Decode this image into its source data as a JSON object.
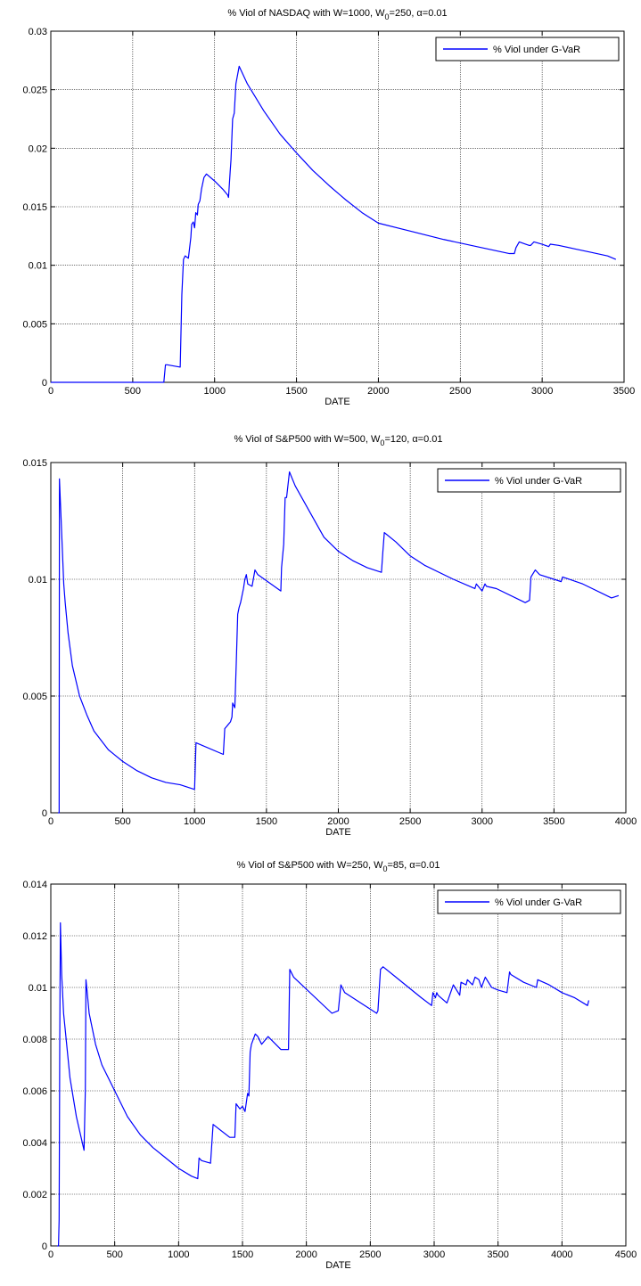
{
  "chart_data": [
    {
      "type": "line",
      "title": "% Viol of NASDAQ  with W=1000, W0=250, α=0.01",
      "title_parts": {
        "pre": "% Viol of NASDAQ  with W=1000, W",
        "sub": "0",
        "post": "=250, α=0.01"
      },
      "xlabel": "DATE",
      "ylabel": "",
      "xlim": [
        0,
        3500
      ],
      "ylim": [
        0,
        0.03
      ],
      "xticks": [
        "0",
        "500",
        "1000",
        "1500",
        "2000",
        "2500",
        "3000",
        "3500"
      ],
      "yticks": [
        "0",
        "0.005",
        "0.01",
        "0.015",
        "0.02",
        "0.025",
        "0.03"
      ],
      "grid": true,
      "legend_position": "top-right",
      "line_color": "#0000ff",
      "series": [
        {
          "name": "% Viol under G-VaR",
          "x": [
            0,
            690,
            700,
            710,
            790,
            800,
            805,
            810,
            820,
            840,
            855,
            860,
            870,
            878,
            885,
            895,
            900,
            910,
            920,
            935,
            950,
            1000,
            1050,
            1080,
            1085,
            1095,
            1100,
            1110,
            1120,
            1130,
            1150,
            1200,
            1300,
            1400,
            1500,
            1600,
            1700,
            1800,
            1900,
            2000,
            2200,
            2400,
            2600,
            2800,
            2830,
            2840,
            2860,
            2900,
            2920,
            2930,
            2950,
            3000,
            3040,
            3050,
            3100,
            3200,
            3300,
            3400,
            3450
          ],
          "y": [
            0,
            0,
            0.0015,
            0.0015,
            0.0013,
            0.0075,
            0.009,
            0.0105,
            0.0108,
            0.0106,
            0.0124,
            0.0135,
            0.0137,
            0.0132,
            0.0145,
            0.0143,
            0.0152,
            0.0155,
            0.0165,
            0.0175,
            0.0178,
            0.0172,
            0.0165,
            0.016,
            0.0158,
            0.018,
            0.019,
            0.0225,
            0.023,
            0.0255,
            0.027,
            0.0255,
            0.0232,
            0.0212,
            0.0196,
            0.0181,
            0.0168,
            0.0156,
            0.0145,
            0.0136,
            0.0129,
            0.0122,
            0.0116,
            0.011,
            0.011,
            0.0115,
            0.012,
            0.0118,
            0.0117,
            0.0117,
            0.012,
            0.0118,
            0.0116,
            0.0118,
            0.0117,
            0.0114,
            0.0111,
            0.0108,
            0.0105
          ]
        }
      ]
    },
    {
      "type": "line",
      "title": "% Viol of S&P500  with W=500, W0=120, α=0.01",
      "title_parts": {
        "pre": "% Viol of S&P500  with W=500, W",
        "sub": "0",
        "post": "=120, α=0.01"
      },
      "xlabel": "DATE",
      "ylabel": "",
      "xlim": [
        0,
        4000
      ],
      "ylim": [
        0,
        0.015
      ],
      "xticks": [
        "0",
        "500",
        "1000",
        "1500",
        "2000",
        "2500",
        "3000",
        "3500",
        "4000"
      ],
      "yticks": [
        "0",
        "0.005",
        "0.01",
        "0.015"
      ],
      "grid": true,
      "legend_position": "top-right",
      "line_color": "#0000ff",
      "series": [
        {
          "name": "% Viol under G-VaR",
          "x": [
            50,
            58,
            60,
            62,
            70,
            80,
            90,
            100,
            120,
            150,
            200,
            250,
            300,
            400,
            500,
            600,
            700,
            800,
            900,
            1000,
            1005,
            1010,
            1200,
            1210,
            1250,
            1260,
            1265,
            1280,
            1290,
            1300,
            1310,
            1320,
            1330,
            1340,
            1350,
            1360,
            1370,
            1400,
            1420,
            1440,
            1600,
            1605,
            1620,
            1630,
            1640,
            1660,
            1700,
            1800,
            1900,
            2000,
            2100,
            2200,
            2300,
            2310,
            2320,
            2400,
            2500,
            2600,
            2800,
            2950,
            2960,
            3000,
            3020,
            3030,
            3100,
            3300,
            3330,
            3340,
            3370,
            3400,
            3500,
            3550,
            3560,
            3700,
            3900,
            3950
          ],
          "y": [
            0,
            0,
            0.0143,
            0.014,
            0.0128,
            0.0113,
            0.0098,
            0.009,
            0.0077,
            0.0063,
            0.005,
            0.0042,
            0.0035,
            0.0027,
            0.0022,
            0.0018,
            0.0015,
            0.0013,
            0.0012,
            0.001,
            0.002,
            0.003,
            0.0025,
            0.0036,
            0.0039,
            0.0041,
            0.0047,
            0.0045,
            0.0064,
            0.0085,
            0.0088,
            0.009,
            0.0093,
            0.0096,
            0.01,
            0.0102,
            0.0098,
            0.0097,
            0.0104,
            0.0102,
            0.0095,
            0.0105,
            0.0115,
            0.0135,
            0.0135,
            0.0146,
            0.014,
            0.0129,
            0.0118,
            0.0112,
            0.0108,
            0.0105,
            0.0103,
            0.0112,
            0.012,
            0.0116,
            0.011,
            0.0106,
            0.01,
            0.0096,
            0.0098,
            0.0095,
            0.0098,
            0.0097,
            0.0096,
            0.009,
            0.0091,
            0.0101,
            0.0104,
            0.0102,
            0.01,
            0.0099,
            0.0101,
            0.0098,
            0.0092,
            0.0093
          ]
        }
      ]
    },
    {
      "type": "line",
      "title": "% Viol of S&P500  with W=250, W0=85, α=0.01",
      "title_parts": {
        "pre": "% Viol of S&P500  with W=250, W",
        "sub": "0",
        "post": "=85, α=0.01"
      },
      "xlabel": "DATE",
      "ylabel": "",
      "xlim": [
        0,
        4500
      ],
      "ylim": [
        0,
        0.014
      ],
      "xticks": [
        "0",
        "500",
        "1000",
        "1500",
        "2000",
        "2500",
        "3000",
        "3500",
        "4000",
        "4500"
      ],
      "yticks": [
        "0",
        "0.002",
        "0.004",
        "0.006",
        "0.008",
        "0.01",
        "0.012",
        "0.014"
      ],
      "grid": true,
      "legend_position": "top-right",
      "line_color": "#0000ff",
      "series": [
        {
          "name": "% Viol under G-VaR",
          "x": [
            50,
            60,
            65,
            70,
            75,
            80,
            85,
            100,
            150,
            200,
            260,
            270,
            275,
            285,
            300,
            350,
            400,
            500,
            600,
            700,
            800,
            900,
            1000,
            1100,
            1150,
            1160,
            1180,
            1250,
            1270,
            1400,
            1440,
            1450,
            1480,
            1500,
            1520,
            1540,
            1550,
            1560,
            1570,
            1600,
            1620,
            1650,
            1700,
            1800,
            1860,
            1870,
            1900,
            2200,
            2250,
            2270,
            2300,
            2550,
            2560,
            2580,
            2600,
            2700,
            2800,
            2900,
            2980,
            2990,
            3010,
            3020,
            3030,
            3100,
            3150,
            3200,
            3210,
            3250,
            3260,
            3300,
            3320,
            3350,
            3370,
            3400,
            3450,
            3500,
            3570,
            3590,
            3600,
            3700,
            3800,
            3810,
            3900,
            4000,
            4100,
            4200,
            4210
          ],
          "y": [
            0,
            0,
            0.001,
            0.008,
            0.0125,
            0.0115,
            0.0105,
            0.009,
            0.0065,
            0.005,
            0.0037,
            0.006,
            0.0103,
            0.0098,
            0.009,
            0.0078,
            0.007,
            0.006,
            0.005,
            0.0043,
            0.0038,
            0.0034,
            0.003,
            0.0027,
            0.0026,
            0.0034,
            0.0033,
            0.0032,
            0.0047,
            0.0042,
            0.0042,
            0.0055,
            0.0053,
            0.0054,
            0.0052,
            0.0059,
            0.0058,
            0.0075,
            0.0078,
            0.0082,
            0.0081,
            0.0078,
            0.0081,
            0.0076,
            0.0076,
            0.0107,
            0.0104,
            0.009,
            0.0091,
            0.0101,
            0.0098,
            0.009,
            0.0091,
            0.0107,
            0.0108,
            0.0104,
            0.01,
            0.0096,
            0.0093,
            0.0098,
            0.0096,
            0.0098,
            0.0097,
            0.0094,
            0.0101,
            0.0097,
            0.0102,
            0.0101,
            0.0103,
            0.0101,
            0.0104,
            0.0103,
            0.01,
            0.0104,
            0.01,
            0.0099,
            0.0098,
            0.0106,
            0.0105,
            0.0102,
            0.01,
            0.0103,
            0.0101,
            0.0098,
            0.0096,
            0.0093,
            0.0095
          ]
        }
      ]
    }
  ]
}
